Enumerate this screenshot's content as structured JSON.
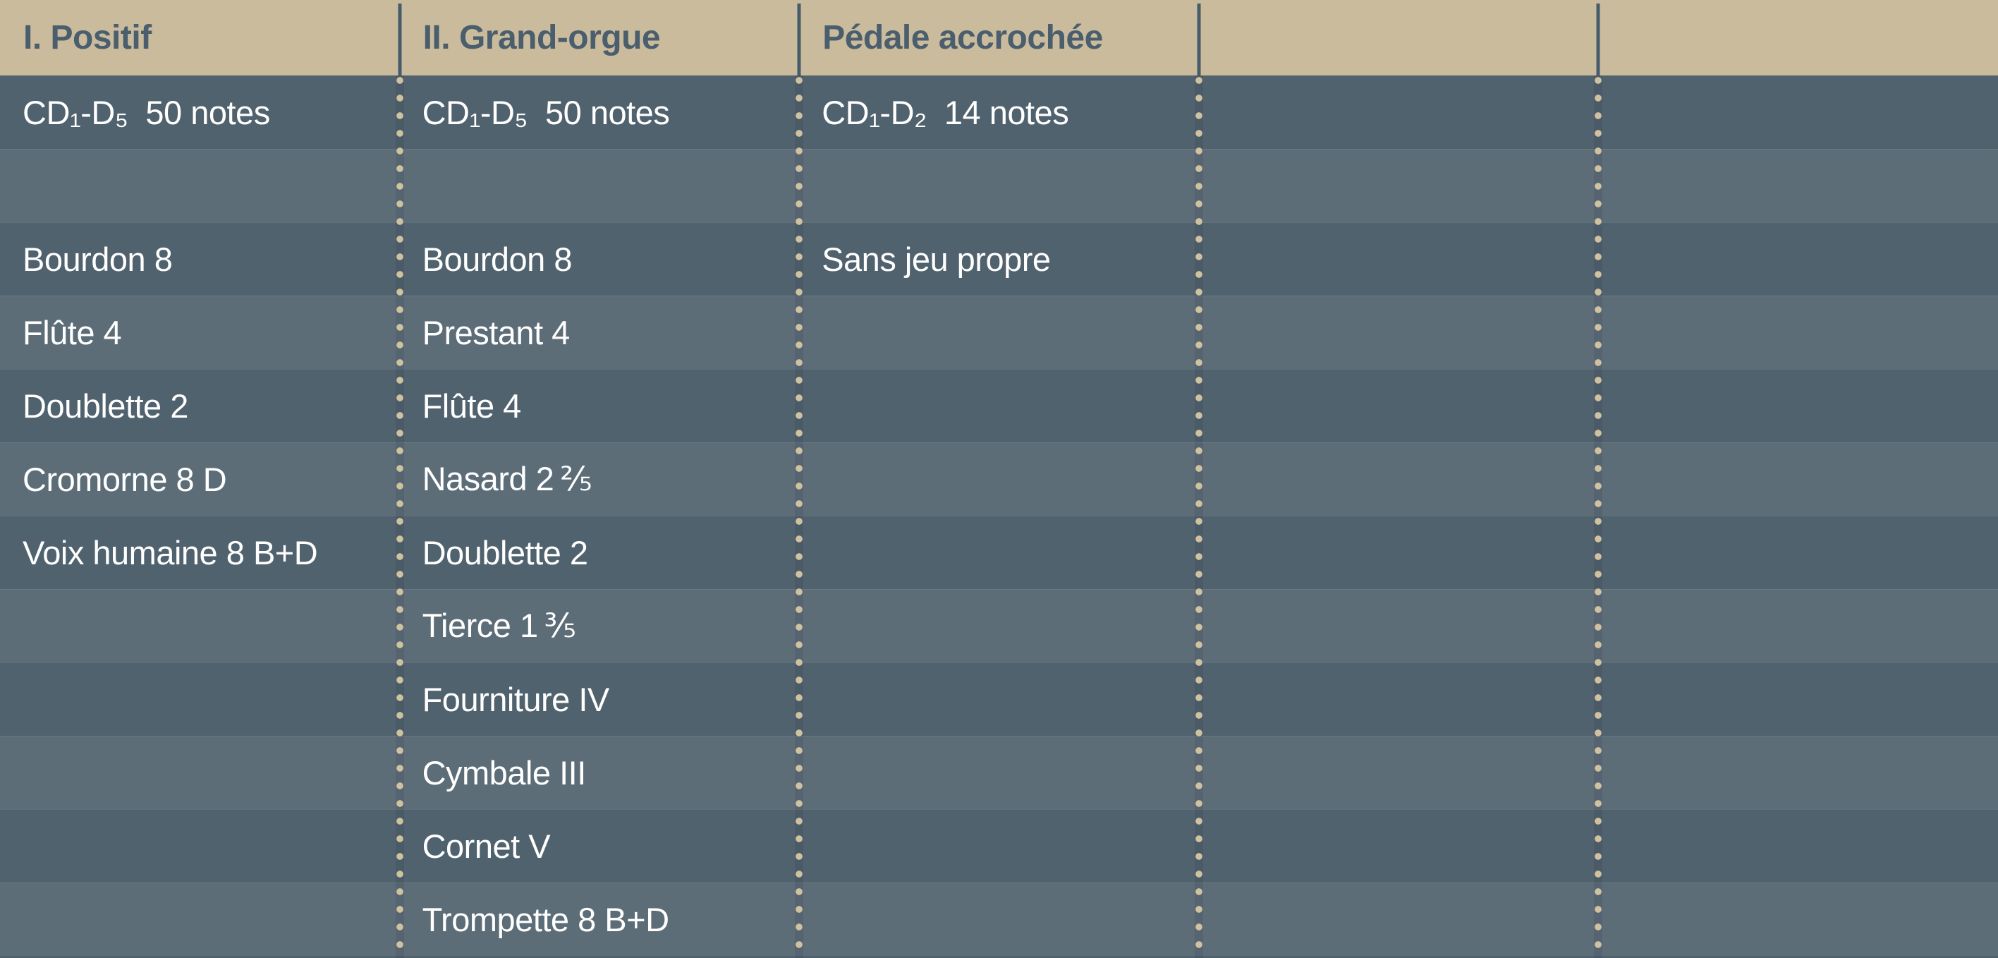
{
  "colors": {
    "header_bg": "#cabb9d",
    "header_text": "#4a5e6d",
    "header_rule": "#475c6b",
    "row_dark": "#50626e",
    "row_light": "#5c6d78",
    "dot": "#d0c1a1",
    "cell_text": "#ffffff"
  },
  "table": {
    "headers": [
      "I. Positif",
      "II. Grand-orgue",
      "Pédale accrochée",
      "",
      ""
    ],
    "rows": [
      {
        "cells": [
          "CD₁-D₅  50 notes",
          "CD₁-D₅  50 notes",
          "CD₁-D₂  14 notes",
          "",
          ""
        ]
      },
      {
        "cells": [
          "",
          "",
          "",
          "",
          ""
        ]
      },
      {
        "cells": [
          "Bourdon 8",
          "Bourdon 8",
          "Sans jeu propre",
          "",
          ""
        ]
      },
      {
        "cells": [
          "Flûte 4",
          "Prestant 4",
          "",
          "",
          ""
        ]
      },
      {
        "cells": [
          "Doublette 2",
          "Flûte 4",
          "",
          "",
          ""
        ]
      },
      {
        "cells": [
          "Cromorne 8 D",
          "Nasard 2 ⅖",
          "",
          "",
          ""
        ]
      },
      {
        "cells": [
          "Voix humaine 8 B+D",
          "Doublette 2",
          "",
          "",
          ""
        ]
      },
      {
        "cells": [
          "",
          "Tierce 1 ⅗",
          "",
          "",
          ""
        ]
      },
      {
        "cells": [
          "",
          "Fourniture IV",
          "",
          "",
          ""
        ]
      },
      {
        "cells": [
          "",
          "Cymbale III",
          "",
          "",
          ""
        ]
      },
      {
        "cells": [
          "",
          "Cornet V",
          "",
          "",
          ""
        ]
      },
      {
        "cells": [
          "",
          "Trompette 8 B+D",
          "",
          "",
          ""
        ]
      }
    ]
  }
}
